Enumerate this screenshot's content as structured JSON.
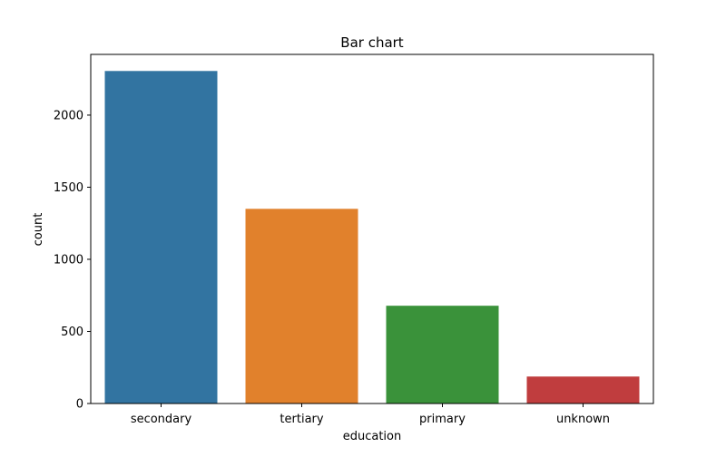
{
  "chart_data": {
    "type": "bar",
    "title": "Bar chart",
    "xlabel": "education",
    "ylabel": "count",
    "categories": [
      "secondary",
      "tertiary",
      "primary",
      "unknown"
    ],
    "values": [
      2306,
      1350,
      678,
      187
    ],
    "colors": [
      "#3274a1",
      "#e1812c",
      "#3a923a",
      "#c03d3e"
    ],
    "ylim": [
      0,
      2421
    ],
    "yticks": [
      0,
      500,
      1000,
      1500,
      2000
    ],
    "grid": false,
    "legend": "none"
  }
}
